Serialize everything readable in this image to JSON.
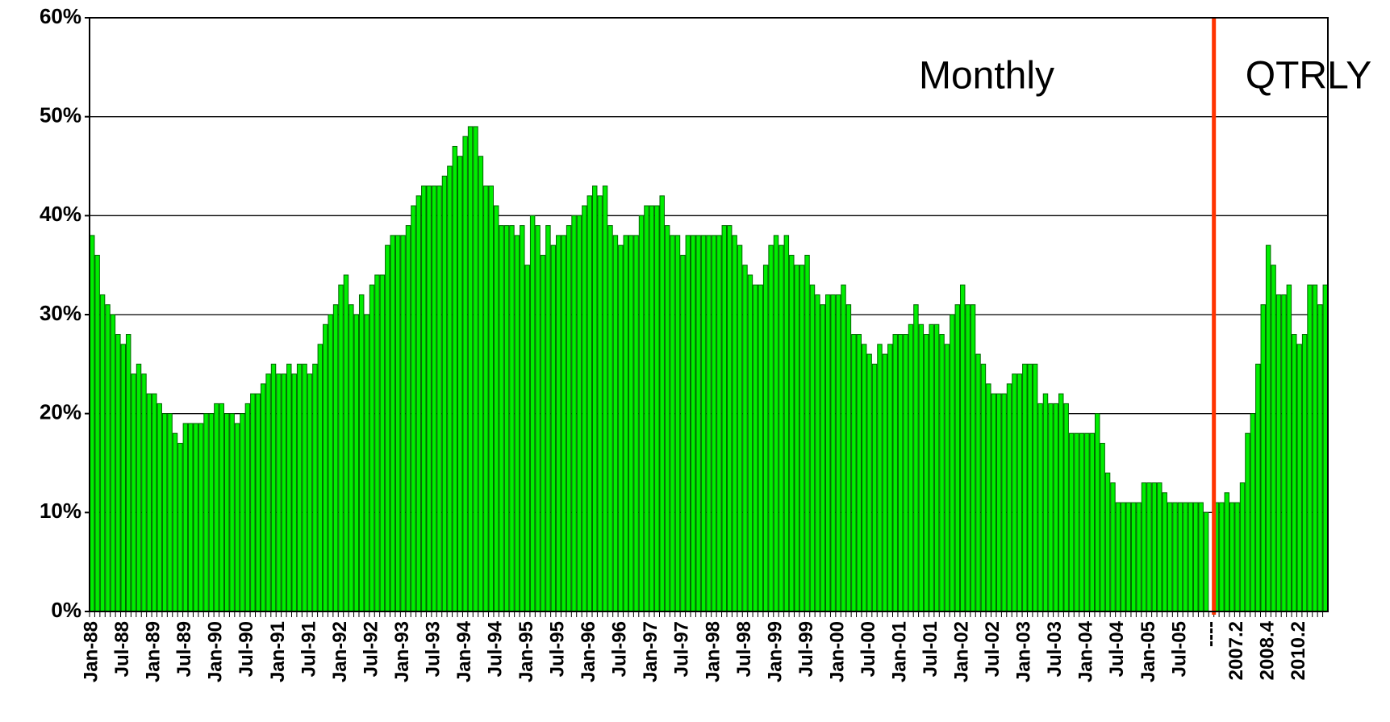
{
  "chart_data": {
    "type": "bar",
    "annotations": [
      "Monthly",
      "QTRLY"
    ],
    "color": "#00ee00",
    "separator_color": "#ff3300",
    "grid": true,
    "ylim": [
      0,
      60
    ],
    "yticks": [
      {
        "value": 0,
        "label": "0%"
      },
      {
        "value": 10,
        "label": "10%"
      },
      {
        "value": 20,
        "label": "20%"
      },
      {
        "value": 30,
        "label": "30%"
      },
      {
        "value": 40,
        "label": "40%"
      },
      {
        "value": 50,
        "label": "50%"
      },
      {
        "value": 60,
        "label": "60%"
      }
    ],
    "categories": [
      "Jan-88",
      null,
      null,
      null,
      null,
      null,
      "Jul-88",
      null,
      null,
      null,
      null,
      null,
      "Jan-89",
      null,
      null,
      null,
      null,
      null,
      "Jul-89",
      null,
      null,
      null,
      null,
      null,
      "Jan-90",
      null,
      null,
      null,
      null,
      null,
      "Jul-90",
      null,
      null,
      null,
      null,
      null,
      "Jan-91",
      null,
      null,
      null,
      null,
      null,
      "Jul-91",
      null,
      null,
      null,
      null,
      null,
      "Jan-92",
      null,
      null,
      null,
      null,
      null,
      "Jul-92",
      null,
      null,
      null,
      null,
      null,
      "Jan-93",
      null,
      null,
      null,
      null,
      null,
      "Jul-93",
      null,
      null,
      null,
      null,
      null,
      "Jan-94",
      null,
      null,
      null,
      null,
      null,
      "Jul-94",
      null,
      null,
      null,
      null,
      null,
      "Jan-95",
      null,
      null,
      null,
      null,
      null,
      "Jul-95",
      null,
      null,
      null,
      null,
      null,
      "Jan-96",
      null,
      null,
      null,
      null,
      null,
      "Jul-96",
      null,
      null,
      null,
      null,
      null,
      "Jan-97",
      null,
      null,
      null,
      null,
      null,
      "Jul-97",
      null,
      null,
      null,
      null,
      null,
      "Jan-98",
      null,
      null,
      null,
      null,
      null,
      "Jul-98",
      null,
      null,
      null,
      null,
      null,
      "Jan-99",
      null,
      null,
      null,
      null,
      null,
      "Jul-99",
      null,
      null,
      null,
      null,
      null,
      "Jan-00",
      null,
      null,
      null,
      null,
      null,
      "Jul-00",
      null,
      null,
      null,
      null,
      null,
      "Jan-01",
      null,
      null,
      null,
      null,
      null,
      "Jul-01",
      null,
      null,
      null,
      null,
      null,
      "Jan-02",
      null,
      null,
      null,
      null,
      null,
      "Jul-02",
      null,
      null,
      null,
      null,
      null,
      "Jan-03",
      null,
      null,
      null,
      null,
      null,
      "Jul-03",
      null,
      null,
      null,
      null,
      null,
      "Jan-04",
      null,
      null,
      null,
      null,
      null,
      "Jul-04",
      null,
      null,
      null,
      null,
      null,
      "Jan-05",
      null,
      null,
      null,
      null,
      null,
      "Jul-05",
      null,
      null,
      null,
      null,
      null,
      "----",
      null,
      null,
      null,
      null,
      "2007.2",
      null,
      null,
      null,
      null,
      null,
      "2008.4",
      null,
      null,
      null,
      null,
      null,
      "2010.2",
      null,
      null,
      null,
      null,
      null
    ],
    "values": [
      38,
      36,
      32,
      31,
      30,
      28,
      27,
      28,
      24,
      25,
      24,
      22,
      22,
      21,
      20,
      20,
      18,
      17,
      19,
      19,
      19,
      19,
      20,
      20,
      21,
      21,
      20,
      20,
      19,
      20,
      21,
      22,
      22,
      23,
      24,
      25,
      24,
      24,
      25,
      24,
      25,
      25,
      24,
      25,
      27,
      29,
      30,
      31,
      33,
      34,
      31,
      30,
      32,
      30,
      33,
      34,
      34,
      37,
      38,
      38,
      38,
      39,
      41,
      42,
      43,
      43,
      43,
      43,
      44,
      45,
      47,
      46,
      48,
      49,
      49,
      46,
      43,
      43,
      41,
      39,
      39,
      39,
      38,
      39,
      35,
      40,
      39,
      36,
      39,
      37,
      38,
      38,
      39,
      40,
      40,
      41,
      42,
      43,
      42,
      43,
      39,
      38,
      37,
      38,
      38,
      38,
      40,
      41,
      41,
      41,
      42,
      39,
      38,
      38,
      36,
      38,
      38,
      38,
      38,
      38,
      38,
      38,
      39,
      39,
      38,
      37,
      35,
      34,
      33,
      33,
      35,
      37,
      38,
      37,
      38,
      36,
      35,
      35,
      36,
      33,
      32,
      31,
      32,
      32,
      32,
      33,
      31,
      28,
      28,
      27,
      26,
      25,
      27,
      26,
      27,
      28,
      28,
      28,
      29,
      31,
      29,
      28,
      29,
      29,
      28,
      27,
      30,
      31,
      33,
      31,
      31,
      26,
      25,
      23,
      22,
      22,
      22,
      23,
      24,
      24,
      25,
      25,
      25,
      21,
      22,
      21,
      21,
      22,
      21,
      18,
      18,
      18,
      18,
      18,
      20,
      17,
      14,
      13,
      11,
      11,
      11,
      11,
      11,
      13,
      13,
      13,
      13,
      12,
      11,
      11,
      11,
      11,
      11,
      11,
      11,
      10,
      null,
      11,
      11,
      12,
      11,
      11,
      13,
      18,
      20,
      25,
      31,
      37,
      35,
      32,
      32,
      33,
      28,
      27,
      28,
      33,
      33,
      31,
      33
    ]
  }
}
